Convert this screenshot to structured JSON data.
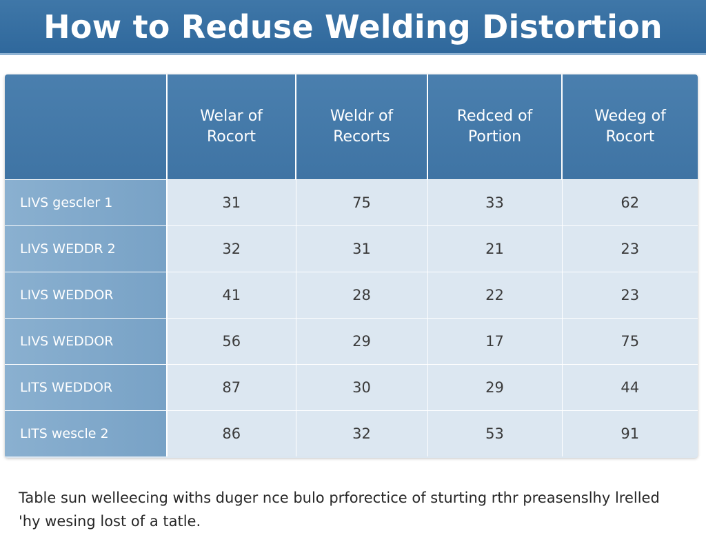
{
  "title": "How to Reduse Welding Distortion",
  "table": {
    "headers": [
      "",
      "Welar of Rocort",
      "Weldr of Recorts",
      "Redced of Portion",
      "Wedeg of Rocort"
    ],
    "rows": [
      {
        "label": "LIVS gescler 1",
        "values": [
          "31",
          "75",
          "33",
          "62"
        ]
      },
      {
        "label": "LIVS WEDDR 2",
        "values": [
          "32",
          "31",
          "21",
          "23"
        ]
      },
      {
        "label": "LIVS WEDDOR",
        "values": [
          "41",
          "28",
          "22",
          "23"
        ]
      },
      {
        "label": "LIVS WEDDOR",
        "values": [
          "56",
          "29",
          "17",
          "75"
        ]
      },
      {
        "label": "LITS WEDDOR",
        "values": [
          "87",
          "30",
          "29",
          "44"
        ]
      },
      {
        "label": "LITS wescle 2",
        "values": [
          "86",
          "32",
          "53",
          "91"
        ]
      }
    ]
  },
  "caption": "Table sun welleecing withs duger nce bulo prforectice of sturting rthr preasenslhy lrelled 'hy wesing lost of a tatle."
}
